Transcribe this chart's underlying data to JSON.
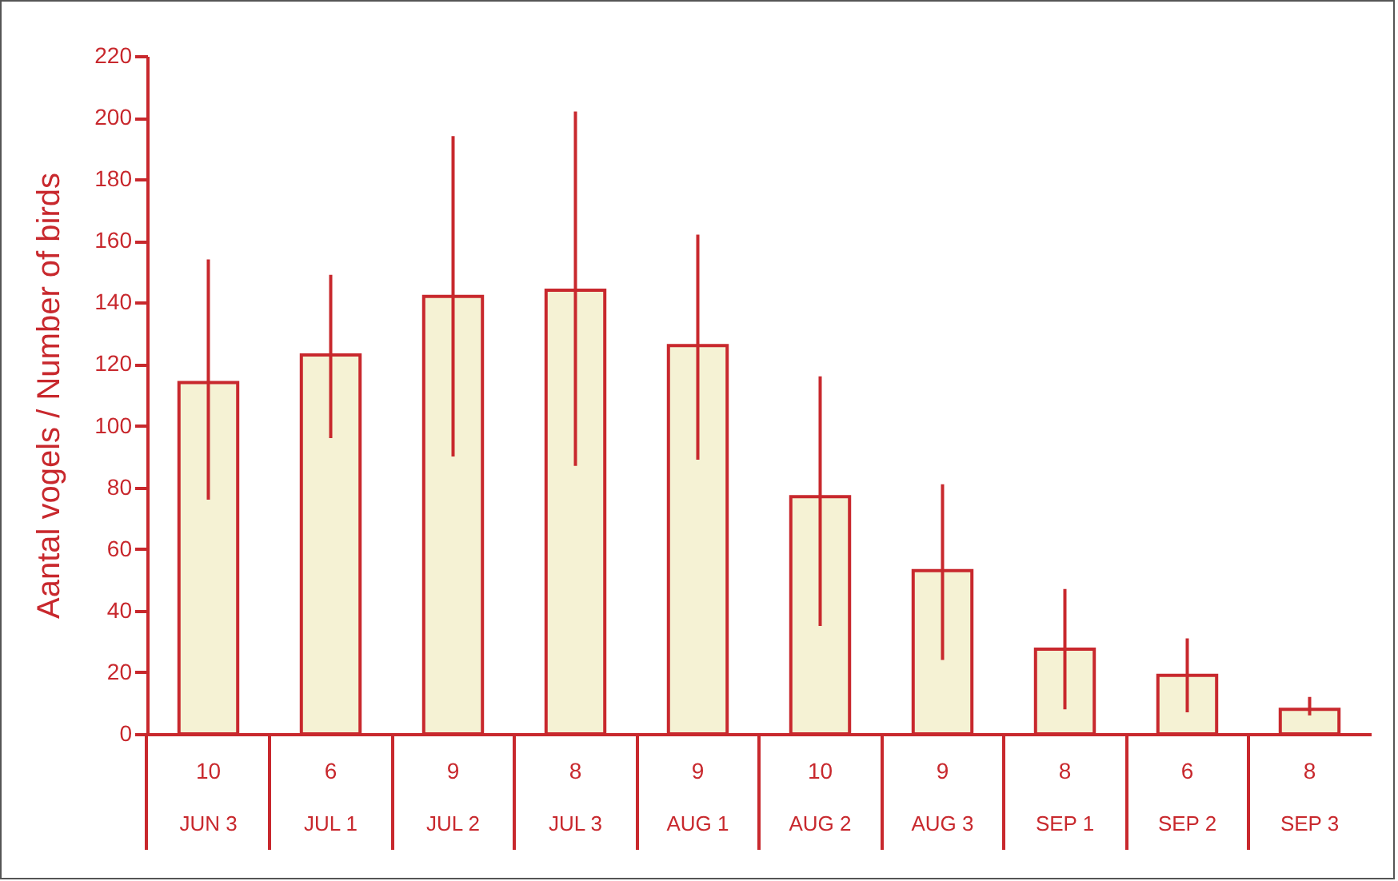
{
  "chart_data": {
    "type": "bar",
    "ylabel": "Aantal vogels  /  Number of birds",
    "categories": [
      "JUN 3",
      "JUL 1",
      "JUL 2",
      "JUL 3",
      "AUG 1",
      "AUG 2",
      "AUG 3",
      "SEP 1",
      "SEP 2",
      "SEP 3"
    ],
    "values": [
      114,
      123,
      142,
      144,
      126,
      77,
      53,
      27.5,
      19,
      8
    ],
    "errors": [
      [
        76,
        154
      ],
      [
        96,
        149
      ],
      [
        90,
        194
      ],
      [
        87,
        202
      ],
      [
        89,
        162
      ],
      [
        35,
        116
      ],
      [
        24,
        81
      ],
      [
        8,
        47
      ],
      [
        7,
        31
      ],
      [
        6,
        12
      ]
    ],
    "color": "#f5f2d4",
    "ylim": [
      0,
      220
    ],
    "yticks": [
      0,
      20,
      40,
      60,
      80,
      100,
      120,
      140,
      160,
      180,
      200,
      220
    ],
    "annotations": [
      "10",
      "6",
      "9",
      "8",
      "9",
      "10",
      "9",
      "8",
      "6",
      "8"
    ],
    "grid": false
  }
}
